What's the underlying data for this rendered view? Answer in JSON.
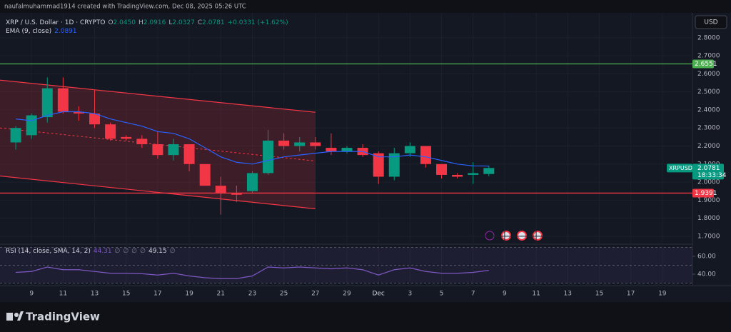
{
  "header": {
    "text": "naufalmuhammad1914 created with TradingView.com, Dec 08, 2025 05:26 UTC"
  },
  "chart_data": [
    {
      "type": "candlestick",
      "title": "XRP / U.S. Dollar · 1D · CRYPTO",
      "ohlc": [
        {
          "label": "O",
          "value": "2.0450"
        },
        {
          "label": "H",
          "value": "2.0916"
        },
        {
          "label": "L",
          "value": "2.0327"
        },
        {
          "label": "C",
          "value": "2.0781"
        }
      ],
      "change": "+0.0331 (+1.62%)",
      "x": [
        "2025-11-08",
        "2025-11-09",
        "2025-11-10",
        "2025-11-11",
        "2025-11-12",
        "2025-11-13",
        "2025-11-14",
        "2025-11-15",
        "2025-11-16",
        "2025-11-17",
        "2025-11-18",
        "2025-11-19",
        "2025-11-20",
        "2025-11-21",
        "2025-11-22",
        "2025-11-23",
        "2025-11-24",
        "2025-11-25",
        "2025-11-26",
        "2025-11-27",
        "2025-11-28",
        "2025-11-29",
        "2025-11-30",
        "2025-12-01",
        "2025-12-02",
        "2025-12-03",
        "2025-12-04",
        "2025-12-05",
        "2025-12-06",
        "2025-12-07",
        "2025-12-08"
      ],
      "open": [
        2.22,
        2.26,
        2.36,
        2.52,
        2.39,
        2.38,
        2.32,
        2.25,
        2.24,
        2.21,
        2.15,
        2.21,
        2.1,
        1.98,
        1.94,
        1.95,
        2.05,
        2.23,
        2.2,
        2.22,
        2.19,
        2.17,
        2.19,
        2.16,
        2.03,
        2.16,
        2.2,
        2.1,
        2.04,
        2.04,
        2.045
      ],
      "high": [
        2.31,
        2.38,
        2.58,
        2.58,
        2.42,
        2.51,
        2.33,
        2.26,
        2.26,
        2.28,
        2.24,
        2.21,
        2.1,
        2.03,
        1.98,
        2.06,
        2.29,
        2.27,
        2.25,
        2.25,
        2.27,
        2.2,
        2.21,
        2.17,
        2.19,
        2.22,
        2.2,
        2.1,
        2.05,
        2.11,
        2.0916
      ],
      "low": [
        2.18,
        2.24,
        2.33,
        2.38,
        2.34,
        2.3,
        2.23,
        2.23,
        2.19,
        2.13,
        2.12,
        2.06,
        1.98,
        1.82,
        1.89,
        1.94,
        2.04,
        2.18,
        2.17,
        2.18,
        2.15,
        2.16,
        2.14,
        1.99,
        2.01,
        2.14,
        2.08,
        2.02,
        2.02,
        1.99,
        2.0327
      ],
      "close": [
        2.3,
        2.37,
        2.52,
        2.39,
        2.38,
        2.32,
        2.24,
        2.24,
        2.21,
        2.15,
        2.21,
        2.1,
        1.98,
        1.94,
        1.93,
        2.05,
        2.23,
        2.2,
        2.22,
        2.2,
        2.17,
        2.19,
        2.15,
        2.03,
        2.16,
        2.2,
        2.1,
        2.04,
        2.03,
        2.05,
        2.0781
      ],
      "color_up": "#089981",
      "color_down": "#f23645",
      "ema": {
        "name": "EMA (9, close)",
        "color": "#2962ff",
        "value_label": "2.0891",
        "values": [
          2.35,
          2.34,
          2.37,
          2.39,
          2.39,
          2.38,
          2.35,
          2.33,
          2.31,
          2.28,
          2.27,
          2.24,
          2.19,
          2.14,
          2.11,
          2.1,
          2.12,
          2.14,
          2.15,
          2.16,
          2.17,
          2.17,
          2.17,
          2.14,
          2.14,
          2.15,
          2.14,
          2.12,
          2.1,
          2.09,
          2.0891
        ]
      },
      "channel": {
        "x": [
          "2025-11-07",
          "2025-11-27"
        ],
        "upper": [
          2.565,
          2.387
        ],
        "middle": [
          2.3,
          2.117
        ],
        "lower": [
          2.034,
          1.852
        ],
        "color": "#f23645"
      },
      "hlines": [
        {
          "value": 2.6551,
          "label": "2.6551",
          "color": "#4caf50"
        },
        {
          "value": 1.9391,
          "label": "1.9391",
          "color": "#f23645"
        }
      ],
      "last_price": {
        "name": "XRPUSD",
        "label": "2.0781",
        "countdown": "18:33:34"
      },
      "currency": "USD",
      "xlim": [
        "2025-11-07",
        "2025-12-21"
      ],
      "xticks": [
        {
          "value": "2025-11-09",
          "label": "9"
        },
        {
          "value": "2025-11-11",
          "label": "11"
        },
        {
          "value": "2025-11-13",
          "label": "13"
        },
        {
          "value": "2025-11-15",
          "label": "15"
        },
        {
          "value": "2025-11-17",
          "label": "17"
        },
        {
          "value": "2025-11-19",
          "label": "19"
        },
        {
          "value": "2025-11-21",
          "label": "21"
        },
        {
          "value": "2025-11-23",
          "label": "23"
        },
        {
          "value": "2025-11-25",
          "label": "25"
        },
        {
          "value": "2025-11-27",
          "label": "27"
        },
        {
          "value": "2025-11-29",
          "label": "29"
        },
        {
          "value": "2025-12-01",
          "label": "Dec"
        },
        {
          "value": "2025-12-03",
          "label": "3"
        },
        {
          "value": "2025-12-05",
          "label": "5"
        },
        {
          "value": "2025-12-07",
          "label": "7"
        },
        {
          "value": "2025-12-09",
          "label": "9"
        },
        {
          "value": "2025-12-11",
          "label": "11"
        },
        {
          "value": "2025-12-13",
          "label": "13"
        },
        {
          "value": "2025-12-15",
          "label": "15"
        },
        {
          "value": "2025-12-17",
          "label": "17"
        },
        {
          "value": "2025-12-19",
          "label": "19"
        }
      ],
      "ylim": [
        1.66,
        2.93
      ],
      "yticks": [
        {
          "value": 1.7,
          "label": "1.7000"
        },
        {
          "value": 1.8,
          "label": "1.8000"
        },
        {
          "value": 1.9,
          "label": "1.9000"
        },
        {
          "value": 2.0,
          "label": "2.0000"
        },
        {
          "value": 2.1,
          "label": "2.1000"
        },
        {
          "value": 2.2,
          "label": "2.2000"
        },
        {
          "value": 2.3,
          "label": "2.3000"
        },
        {
          "value": 2.4,
          "label": "2.4000"
        },
        {
          "value": 2.5,
          "label": "2.5000"
        },
        {
          "value": 2.6,
          "label": "2.6000"
        },
        {
          "value": 2.7,
          "label": "2.7000"
        },
        {
          "value": 2.8,
          "label": "2.8000"
        }
      ]
    },
    {
      "type": "line",
      "title": "RSI (14, close, SMA, 14, 2)",
      "legend_values": [
        "44.31",
        "∅",
        "∅",
        "∅",
        "∅",
        "49.15",
        "∅"
      ],
      "series": [
        {
          "name": "RSI",
          "color": "#7e57c2",
          "values": [
            42,
            43,
            48,
            45,
            45,
            43,
            41,
            41,
            40.5,
            39,
            41,
            38,
            36,
            35,
            35,
            38,
            48,
            47,
            48,
            47,
            46,
            47,
            45,
            39,
            45,
            47,
            43,
            41,
            41,
            42,
            44.31
          ]
        }
      ],
      "levels": [
        70,
        50,
        30
      ],
      "ylim": [
        28.8,
        71.2
      ],
      "yticks": [
        {
          "value": 40,
          "label": "40.00"
        },
        {
          "value": 60,
          "label": "60.00"
        }
      ]
    }
  ],
  "footer": {
    "brand": "TradingView"
  }
}
